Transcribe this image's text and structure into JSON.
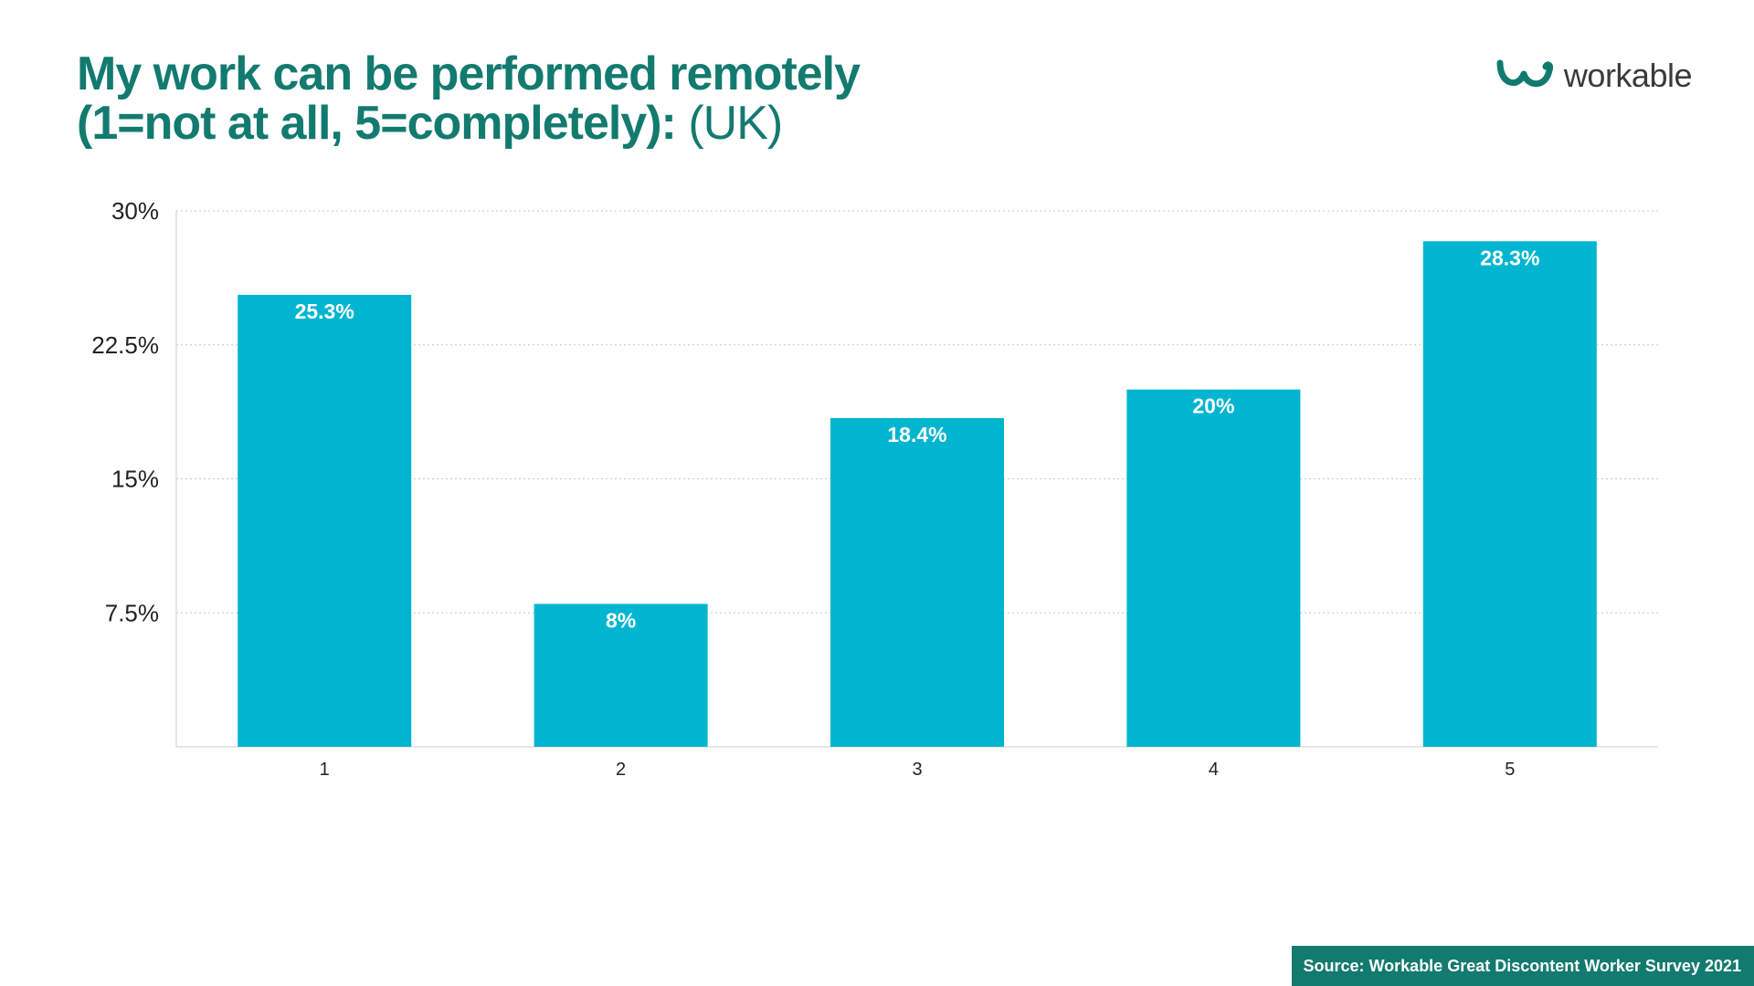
{
  "title": {
    "line1": "My work can be performed remotely",
    "line2_bold": "(1=not at all, 5=completely):",
    "line2_light": "(UK)"
  },
  "logo": {
    "text": "workable",
    "icon": "workable-logo-icon"
  },
  "source": "Source: Workable Great Discontent Worker Survey 2021",
  "colors": {
    "title": "#137a6f",
    "bar": "#00b5cf",
    "bar_label": "#ffffff",
    "grid": "#c8c8c8",
    "axis": "#cfcfcf",
    "tick_text": "#222222",
    "source_bg": "#137a6f"
  },
  "chart_data": {
    "type": "bar",
    "categories": [
      "1",
      "2",
      "3",
      "4",
      "5"
    ],
    "values": [
      25.3,
      8,
      18.4,
      20,
      28.3
    ],
    "value_labels": [
      "25.3%",
      "8%",
      "18.4%",
      "20%",
      "28.3%"
    ],
    "ylim": [
      0,
      30
    ],
    "yticks": [
      7.5,
      15,
      22.5,
      30
    ],
    "ytick_labels": [
      "7.5%",
      "15%",
      "22.5%",
      "30%"
    ],
    "grid": true,
    "grid_style": "dotted",
    "legend": "none",
    "xlabel": "",
    "ylabel": ""
  }
}
